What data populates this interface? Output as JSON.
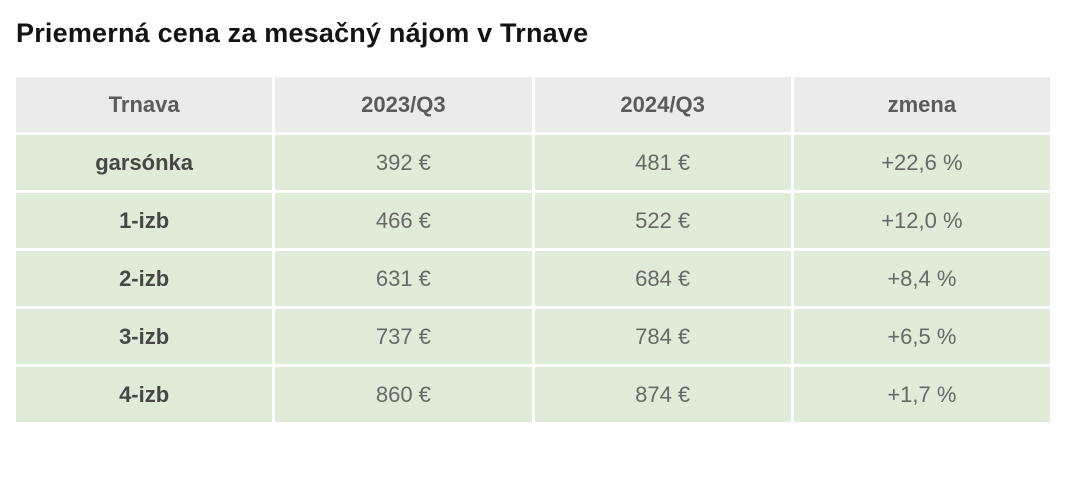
{
  "title": "Priemerná cena za mesačný nájom v Trnave",
  "colors": {
    "header_bg": "#ebebeb",
    "row_bg": "#deecd8",
    "title_text": "#141414",
    "header_text": "#5b5b5b",
    "label_text": "#474747",
    "value_text": "#696969",
    "gutter": "#ffffff"
  },
  "chart_data": {
    "type": "table",
    "title": "Priemerná cena za mesačný nájom v Trnave",
    "columns": [
      "Trnava",
      "2023/Q3",
      "2024/Q3",
      "zmena"
    ],
    "rows": [
      [
        "garsónka",
        "392 €",
        "481 €",
        "+22,6 %"
      ],
      [
        "1-izb",
        "466 €",
        "522 €",
        "+12,0 %"
      ],
      [
        "2-izb",
        "631 €",
        "684 €",
        "+8,4 %"
      ],
      [
        "3-izb",
        "737 €",
        "784 €",
        "+6,5 %"
      ],
      [
        "4-izb",
        "860 €",
        "874 €",
        "+1,7 %"
      ]
    ]
  }
}
